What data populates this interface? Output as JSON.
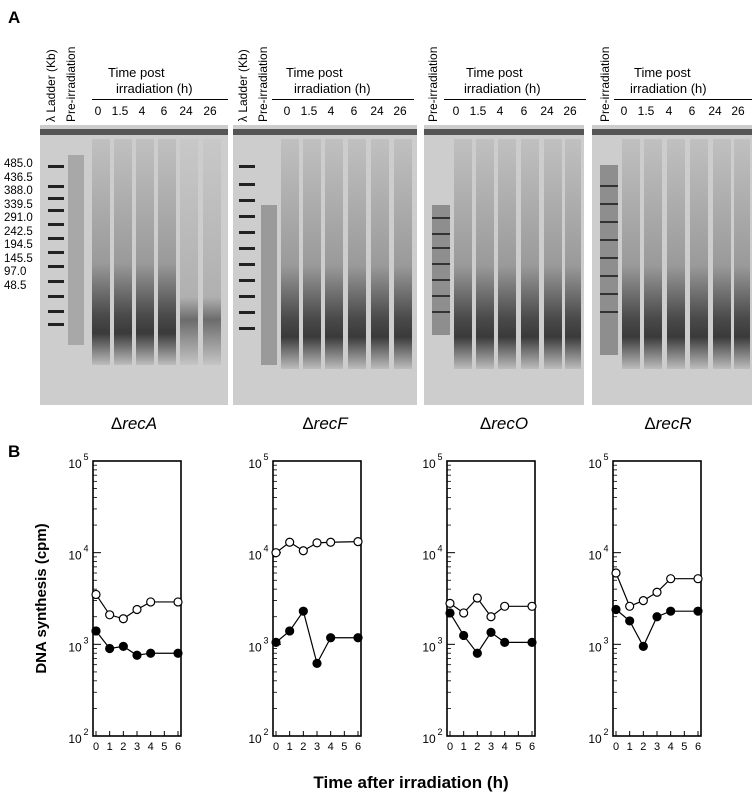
{
  "panel_a_letter": "A",
  "panel_b_letter": "B",
  "panel_a": {
    "ladder_label": "λ Ladder (Kb)",
    "pre_label": "Pre-irradiation",
    "time_header_line1": "Time post",
    "time_header_line2": "irradiation (h)",
    "time_lanes": [
      "0",
      "1.5",
      "4",
      "6",
      "24",
      "26"
    ],
    "ladder_sizes": [
      "485.0",
      "436.5",
      "388.0",
      "339.5",
      "291.0",
      "242.5",
      "194.5",
      "145.5",
      "97.0",
      "48.5"
    ],
    "strains": [
      {
        "delta": "Δ",
        "gene": "recA"
      },
      {
        "delta": "Δ",
        "gene": "recF"
      },
      {
        "delta": "Δ",
        "gene": "recO"
      },
      {
        "delta": "Δ",
        "gene": "recR"
      }
    ]
  },
  "chart_data": [
    {
      "type": "scatter",
      "title": "",
      "xlabel": "Time after irradiation (h)",
      "ylabel": "DNA synthesis (cpm)",
      "yscale": "log",
      "ylim": [
        100,
        100000
      ],
      "xlim": [
        0,
        6
      ],
      "x_ticks": [
        "0",
        "1",
        "2",
        "3",
        "4",
        "5",
        "6"
      ],
      "y_ticks": [
        {
          "base": "10",
          "exp": "5"
        },
        {
          "base": "10",
          "exp": "4"
        },
        {
          "base": "10",
          "exp": "3"
        },
        {
          "base": "10",
          "exp": "2"
        }
      ],
      "x": [
        0,
        1,
        2,
        3,
        4,
        6
      ],
      "series": [
        {
          "marker": "open-circle",
          "values": [
            3500,
            2100,
            1900,
            2400,
            2900,
            2900
          ]
        },
        {
          "marker": "filled-circle",
          "values": [
            1400,
            900,
            950,
            760,
            800,
            800
          ]
        }
      ]
    },
    {
      "type": "scatter",
      "title": "",
      "xlabel": "Time after irradiation (h)",
      "ylabel": "DNA synthesis (cpm)",
      "yscale": "log",
      "ylim": [
        100,
        100000
      ],
      "xlim": [
        0,
        6
      ],
      "x_ticks": [
        "0",
        "1",
        "2",
        "3",
        "4",
        "5",
        "6"
      ],
      "y_ticks": [
        {
          "base": "10",
          "exp": "5"
        },
        {
          "base": "10",
          "exp": "4"
        },
        {
          "base": "10",
          "exp": "3"
        },
        {
          "base": "10",
          "exp": "2"
        }
      ],
      "x": [
        0,
        1,
        2,
        3,
        4,
        6
      ],
      "series": [
        {
          "marker": "open-circle",
          "values": [
            10000,
            13000,
            10500,
            12800,
            13000,
            13200
          ]
        },
        {
          "marker": "filled-circle",
          "values": [
            1050,
            1400,
            2300,
            620,
            1180,
            1180
          ]
        }
      ]
    },
    {
      "type": "scatter",
      "title": "",
      "xlabel": "Time after irradiation (h)",
      "ylabel": "DNA synthesis (cpm)",
      "yscale": "log",
      "ylim": [
        100,
        100000
      ],
      "xlim": [
        0,
        6
      ],
      "x_ticks": [
        "0",
        "1",
        "2",
        "3",
        "4",
        "5",
        "6"
      ],
      "y_ticks": [
        {
          "base": "10",
          "exp": "5"
        },
        {
          "base": "10",
          "exp": "4"
        },
        {
          "base": "10",
          "exp": "3"
        },
        {
          "base": "10",
          "exp": "2"
        }
      ],
      "x": [
        0,
        1,
        2,
        3,
        4,
        6
      ],
      "series": [
        {
          "marker": "open-circle",
          "values": [
            2800,
            2200,
            3200,
            2000,
            2600,
            2600
          ]
        },
        {
          "marker": "filled-circle",
          "values": [
            2200,
            1250,
            800,
            1350,
            1050,
            1050
          ]
        }
      ]
    },
    {
      "type": "scatter",
      "title": "",
      "xlabel": "Time after irradiation (h)",
      "ylabel": "DNA synthesis (cpm)",
      "yscale": "log",
      "ylim": [
        100,
        100000
      ],
      "xlim": [
        0,
        6
      ],
      "x_ticks": [
        "0",
        "1",
        "2",
        "3",
        "4",
        "5",
        "6"
      ],
      "y_ticks": [
        {
          "base": "10",
          "exp": "5"
        },
        {
          "base": "10",
          "exp": "4"
        },
        {
          "base": "10",
          "exp": "3"
        },
        {
          "base": "10",
          "exp": "2"
        }
      ],
      "x": [
        0,
        1,
        2,
        3,
        4,
        6
      ],
      "series": [
        {
          "marker": "open-circle",
          "values": [
            6000,
            2600,
            3000,
            3700,
            5200,
            5200
          ]
        },
        {
          "marker": "filled-circle",
          "values": [
            2400,
            1800,
            950,
            2000,
            2300,
            2300
          ]
        }
      ]
    }
  ]
}
